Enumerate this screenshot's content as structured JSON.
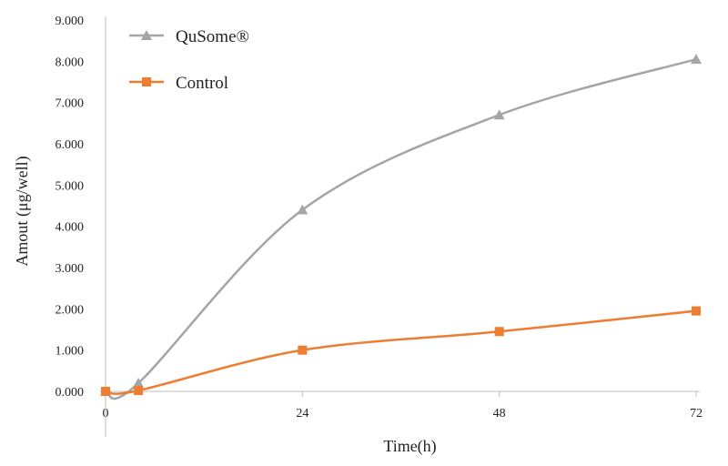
{
  "chart_data": {
    "type": "line",
    "title": "",
    "xlabel": "Time(h)",
    "ylabel": "Amout (μg/well)",
    "x": [
      0,
      4,
      24,
      48,
      72
    ],
    "xticks": [
      "0",
      "24",
      "48",
      "72"
    ],
    "xtick_values": [
      0,
      24,
      48,
      72
    ],
    "xlim": [
      0,
      72
    ],
    "yticks": [
      "0.000",
      "1.000",
      "2.000",
      "3.000",
      "4.000",
      "5.000",
      "6.000",
      "7.000",
      "8.000",
      "9.000"
    ],
    "ylim": [
      0,
      9
    ],
    "grid": false,
    "legend_position": "top-left",
    "series": [
      {
        "name": "QuSome®",
        "values": [
          0.0,
          0.2,
          4.4,
          6.7,
          8.05
        ],
        "color": "#a5a5a5",
        "marker": "triangle"
      },
      {
        "name": "Control",
        "values": [
          0.0,
          0.02,
          1.0,
          1.45,
          1.95
        ],
        "color": "#ed7d31",
        "marker": "square"
      }
    ]
  }
}
